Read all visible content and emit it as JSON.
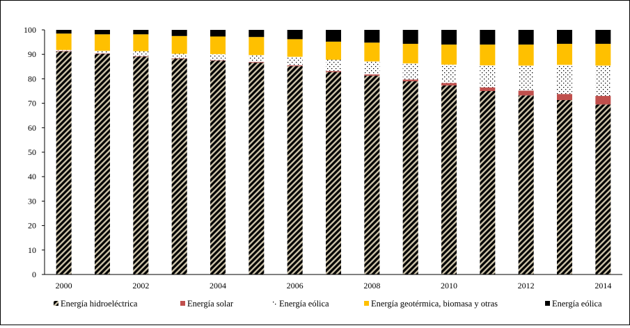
{
  "chart_data": {
    "type": "bar",
    "stacked": true,
    "normalized_percent": true,
    "title": "",
    "xlabel": "",
    "ylabel": "",
    "ylim": [
      0,
      100
    ],
    "yticks": [
      0,
      10,
      20,
      30,
      40,
      50,
      60,
      70,
      80,
      90,
      100
    ],
    "x": [
      2000,
      2001,
      2002,
      2003,
      2004,
      2005,
      2006,
      2007,
      2008,
      2009,
      2010,
      2011,
      2012,
      2013,
      2014
    ],
    "xtick_labels": [
      "2000",
      "2002",
      "2004",
      "2006",
      "2008",
      "2010",
      "2012",
      "2014"
    ],
    "grid": false,
    "legend_position": "bottom",
    "series": [
      {
        "name": "Energía hidroeléctrica",
        "color": "#c8bfa6",
        "pattern": "diagonal-stripes",
        "values": [
          91.2,
          90.2,
          89.1,
          88.2,
          87.4,
          86.6,
          85.2,
          82.8,
          81.3,
          79.0,
          77.3,
          75.0,
          73.2,
          71.3,
          69.5
        ]
      },
      {
        "name": "Energía solar",
        "color": "#c0504d",
        "pattern": "solid",
        "values": [
          0.2,
          0.2,
          0.2,
          0.2,
          0.2,
          0.3,
          0.3,
          0.4,
          0.5,
          0.7,
          1.0,
          1.5,
          2.0,
          2.5,
          3.5
        ]
      },
      {
        "name": "Energía eólica",
        "color": "#ffffff",
        "pattern": "dots",
        "values": [
          0.4,
          1.0,
          2.0,
          1.8,
          2.5,
          2.8,
          3.5,
          4.6,
          5.3,
          6.6,
          7.5,
          9.0,
          10.2,
          11.9,
          12.4
        ]
      },
      {
        "name": "Energía geotérmica, biomasa y otras",
        "color": "#ffc000",
        "pattern": "solid",
        "values": [
          6.7,
          6.8,
          6.9,
          7.3,
          7.2,
          7.4,
          7.2,
          7.4,
          7.7,
          8.0,
          8.2,
          8.5,
          8.6,
          8.6,
          8.9
        ]
      },
      {
        "name": "Energía eólica",
        "color": "#000000",
        "pattern": "solid",
        "values": [
          1.5,
          1.8,
          1.8,
          2.5,
          2.7,
          2.9,
          3.8,
          4.8,
          5.2,
          5.7,
          6.0,
          6.0,
          6.0,
          5.7,
          5.7
        ]
      }
    ]
  }
}
